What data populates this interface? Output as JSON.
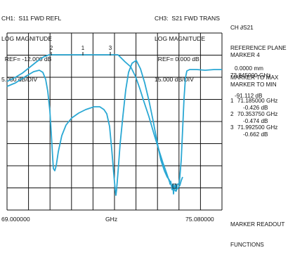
{
  "ch1": {
    "line1": "CH1:  S11 FWD REFL",
    "line2": "LOG MAGNITUDE",
    "line3": "  REF= -12.000 dB",
    "line4": "5.000 dB/DIV"
  },
  "ch3": {
    "line1": "CH3:  S21 FWD TRANS",
    "line2": "LOG MAGNITUDE",
    "line3": "  REF= 0.000 dB",
    "line4": "15.000 dB/DIV"
  },
  "x_axis": {
    "start": "69.000000",
    "unit": "GHz",
    "stop": "75.080000"
  },
  "menu": {
    "ch_label": "CH ∂S21",
    "ref_plane": "REFERENCE PLANE",
    "ref_value": "0.0000 mm",
    "marker_title": "MARKER 4",
    "marker_freq": "73.845000 GHz",
    "marker_amp": "-91.112 dB",
    "to_max": "MARKER TO MAX",
    "to_min": "MARKER TO MIN",
    "readout": "MARKER READOUT",
    "functions": "FUNCTIONS"
  },
  "markers": [
    {
      "num": "1",
      "freq": "71.185000 GHz",
      "amp": "-0.426 dB"
    },
    {
      "num": "2",
      "freq": "70.353750 GHz",
      "amp": "-0.474 dB"
    },
    {
      "num": "3",
      "freq": "71.992500 GHz",
      "amp": "-0.662 dB"
    }
  ],
  "colors": {
    "trace": "#2aa8d4",
    "grid": "#111111"
  }
}
